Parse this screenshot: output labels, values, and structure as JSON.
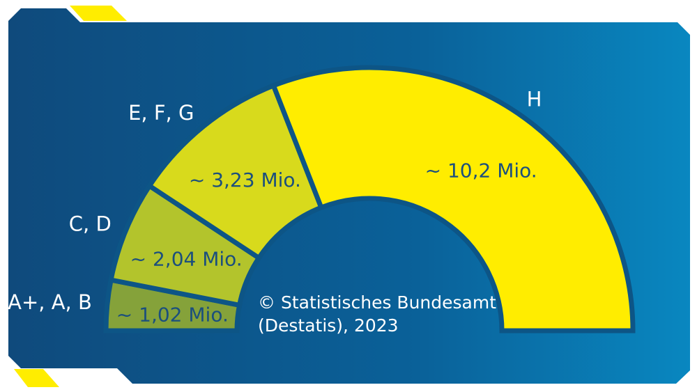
{
  "chart_data": {
    "type": "semi-donut",
    "categories": [
      "A+, A, B",
      "C, D",
      "E, F, G",
      "H"
    ],
    "values": [
      1.02,
      2.04,
      3.23,
      10.2
    ],
    "value_labels": [
      "~ 1,02 Mio.",
      "~ 2,04 Mio.",
      "~ 3,23 Mio.",
      "~ 10,2 Mio."
    ],
    "colors": [
      "#85a23a",
      "#b3c42c",
      "#d8da1c",
      "#ffed00"
    ],
    "source": [
      "© Statistisches Bundesamt",
      "(Destatis), 2023"
    ]
  }
}
